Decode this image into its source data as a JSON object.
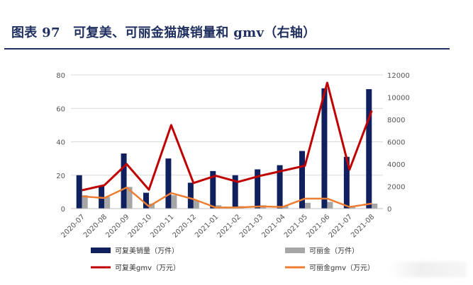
{
  "title": "图表 97　可复美、可丽金猫旗销量和 gmv（右轴）",
  "chart_data": {
    "type": "bar",
    "categories": [
      "2020-07",
      "2020-08",
      "2020-09",
      "2020-10",
      "2020-11",
      "2020-12",
      "2021-01",
      "2021-02",
      "2021-03",
      "2021-04",
      "2021-05",
      "2021-06",
      "2021-07",
      "2021-08"
    ],
    "ylim": [
      0,
      80
    ],
    "yticks": [
      0,
      20,
      40,
      60,
      80
    ],
    "y2lim": [
      0,
      12000
    ],
    "y2ticks": [
      0,
      2000,
      4000,
      6000,
      8000,
      10000,
      12000
    ],
    "series": [
      {
        "name": "可复美销量（万件）",
        "type": "bar",
        "axis": "left",
        "color": "#10205f",
        "values": [
          20,
          14,
          33,
          9.5,
          30,
          15.5,
          22.5,
          20,
          23.5,
          26,
          34.5,
          72,
          31,
          71.5
        ]
      },
      {
        "name": "可丽金（万件）",
        "type": "bar",
        "axis": "left",
        "color": "#a6a6a6",
        "values": [
          8,
          7,
          13,
          3,
          8,
          5,
          2,
          1.5,
          2,
          1.5,
          3.5,
          4,
          1.5,
          3
        ]
      },
      {
        "name": "可复美gmv（万元）",
        "type": "line",
        "axis": "right",
        "color": "#c00000",
        "values": [
          1650,
          2100,
          4000,
          1700,
          7500,
          2300,
          2950,
          2400,
          2950,
          3400,
          3850,
          11300,
          3500,
          8800
        ]
      },
      {
        "name": "可丽金gmv（万元）",
        "type": "line",
        "axis": "right",
        "color": "#ed7d31",
        "values": [
          1100,
          950,
          1900,
          200,
          1400,
          850,
          100,
          100,
          200,
          150,
          900,
          900,
          150,
          450
        ]
      }
    ]
  }
}
